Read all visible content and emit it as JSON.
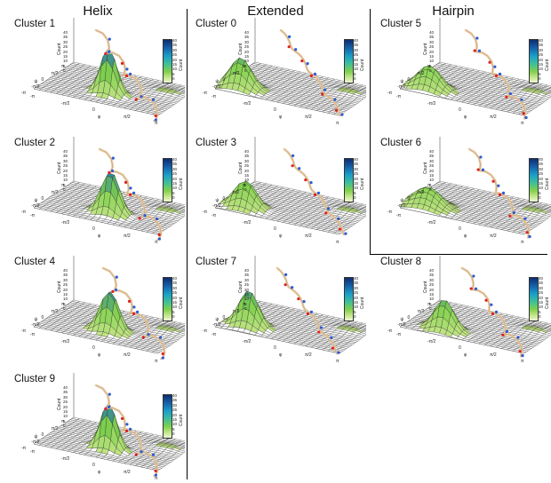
{
  "columns": [
    {
      "title": "Helix"
    },
    {
      "title": "Extended"
    },
    {
      "title": "Hairpin"
    }
  ],
  "panels": [
    {
      "cluster": "Cluster 1",
      "group": "helix"
    },
    {
      "cluster": "Cluster 2",
      "group": "helix"
    },
    {
      "cluster": "Cluster 4",
      "group": "helix"
    },
    {
      "cluster": "Cluster 9",
      "group": "helix"
    },
    {
      "cluster": "Cluster 0",
      "group": "extended"
    },
    {
      "cluster": "Cluster 3",
      "group": "extended"
    },
    {
      "cluster": "Cluster 7",
      "group": "extended"
    },
    {
      "cluster": "Cluster 5",
      "group": "hairpin"
    },
    {
      "cluster": "Cluster 6",
      "group": "hairpin"
    },
    {
      "cluster": "Cluster 8",
      "group": "hairpin"
    }
  ],
  "axes": {
    "z_label": "Count",
    "x_label": "φ",
    "y_label": "ψ",
    "ticks": [
      "-π",
      "-π/2",
      "0",
      "π/2",
      "π"
    ],
    "z_ticks": [
      "40",
      "35",
      "30",
      "25",
      "20",
      "15",
      "10",
      "5",
      "0"
    ],
    "colorbar_label": "Count",
    "colorbar_ticks": [
      "40",
      "35",
      "30",
      "25",
      "20",
      "15",
      "10",
      "5",
      "0"
    ]
  },
  "colors": {
    "surface_low": "#c8e68a",
    "surface_mid": "#7fd04c",
    "surface_high": "#1a6fb0",
    "mesh": "#222222",
    "carbon": "#e8c9a0",
    "nitrogen": "#2a5bd7",
    "oxygen": "#e02020"
  }
}
